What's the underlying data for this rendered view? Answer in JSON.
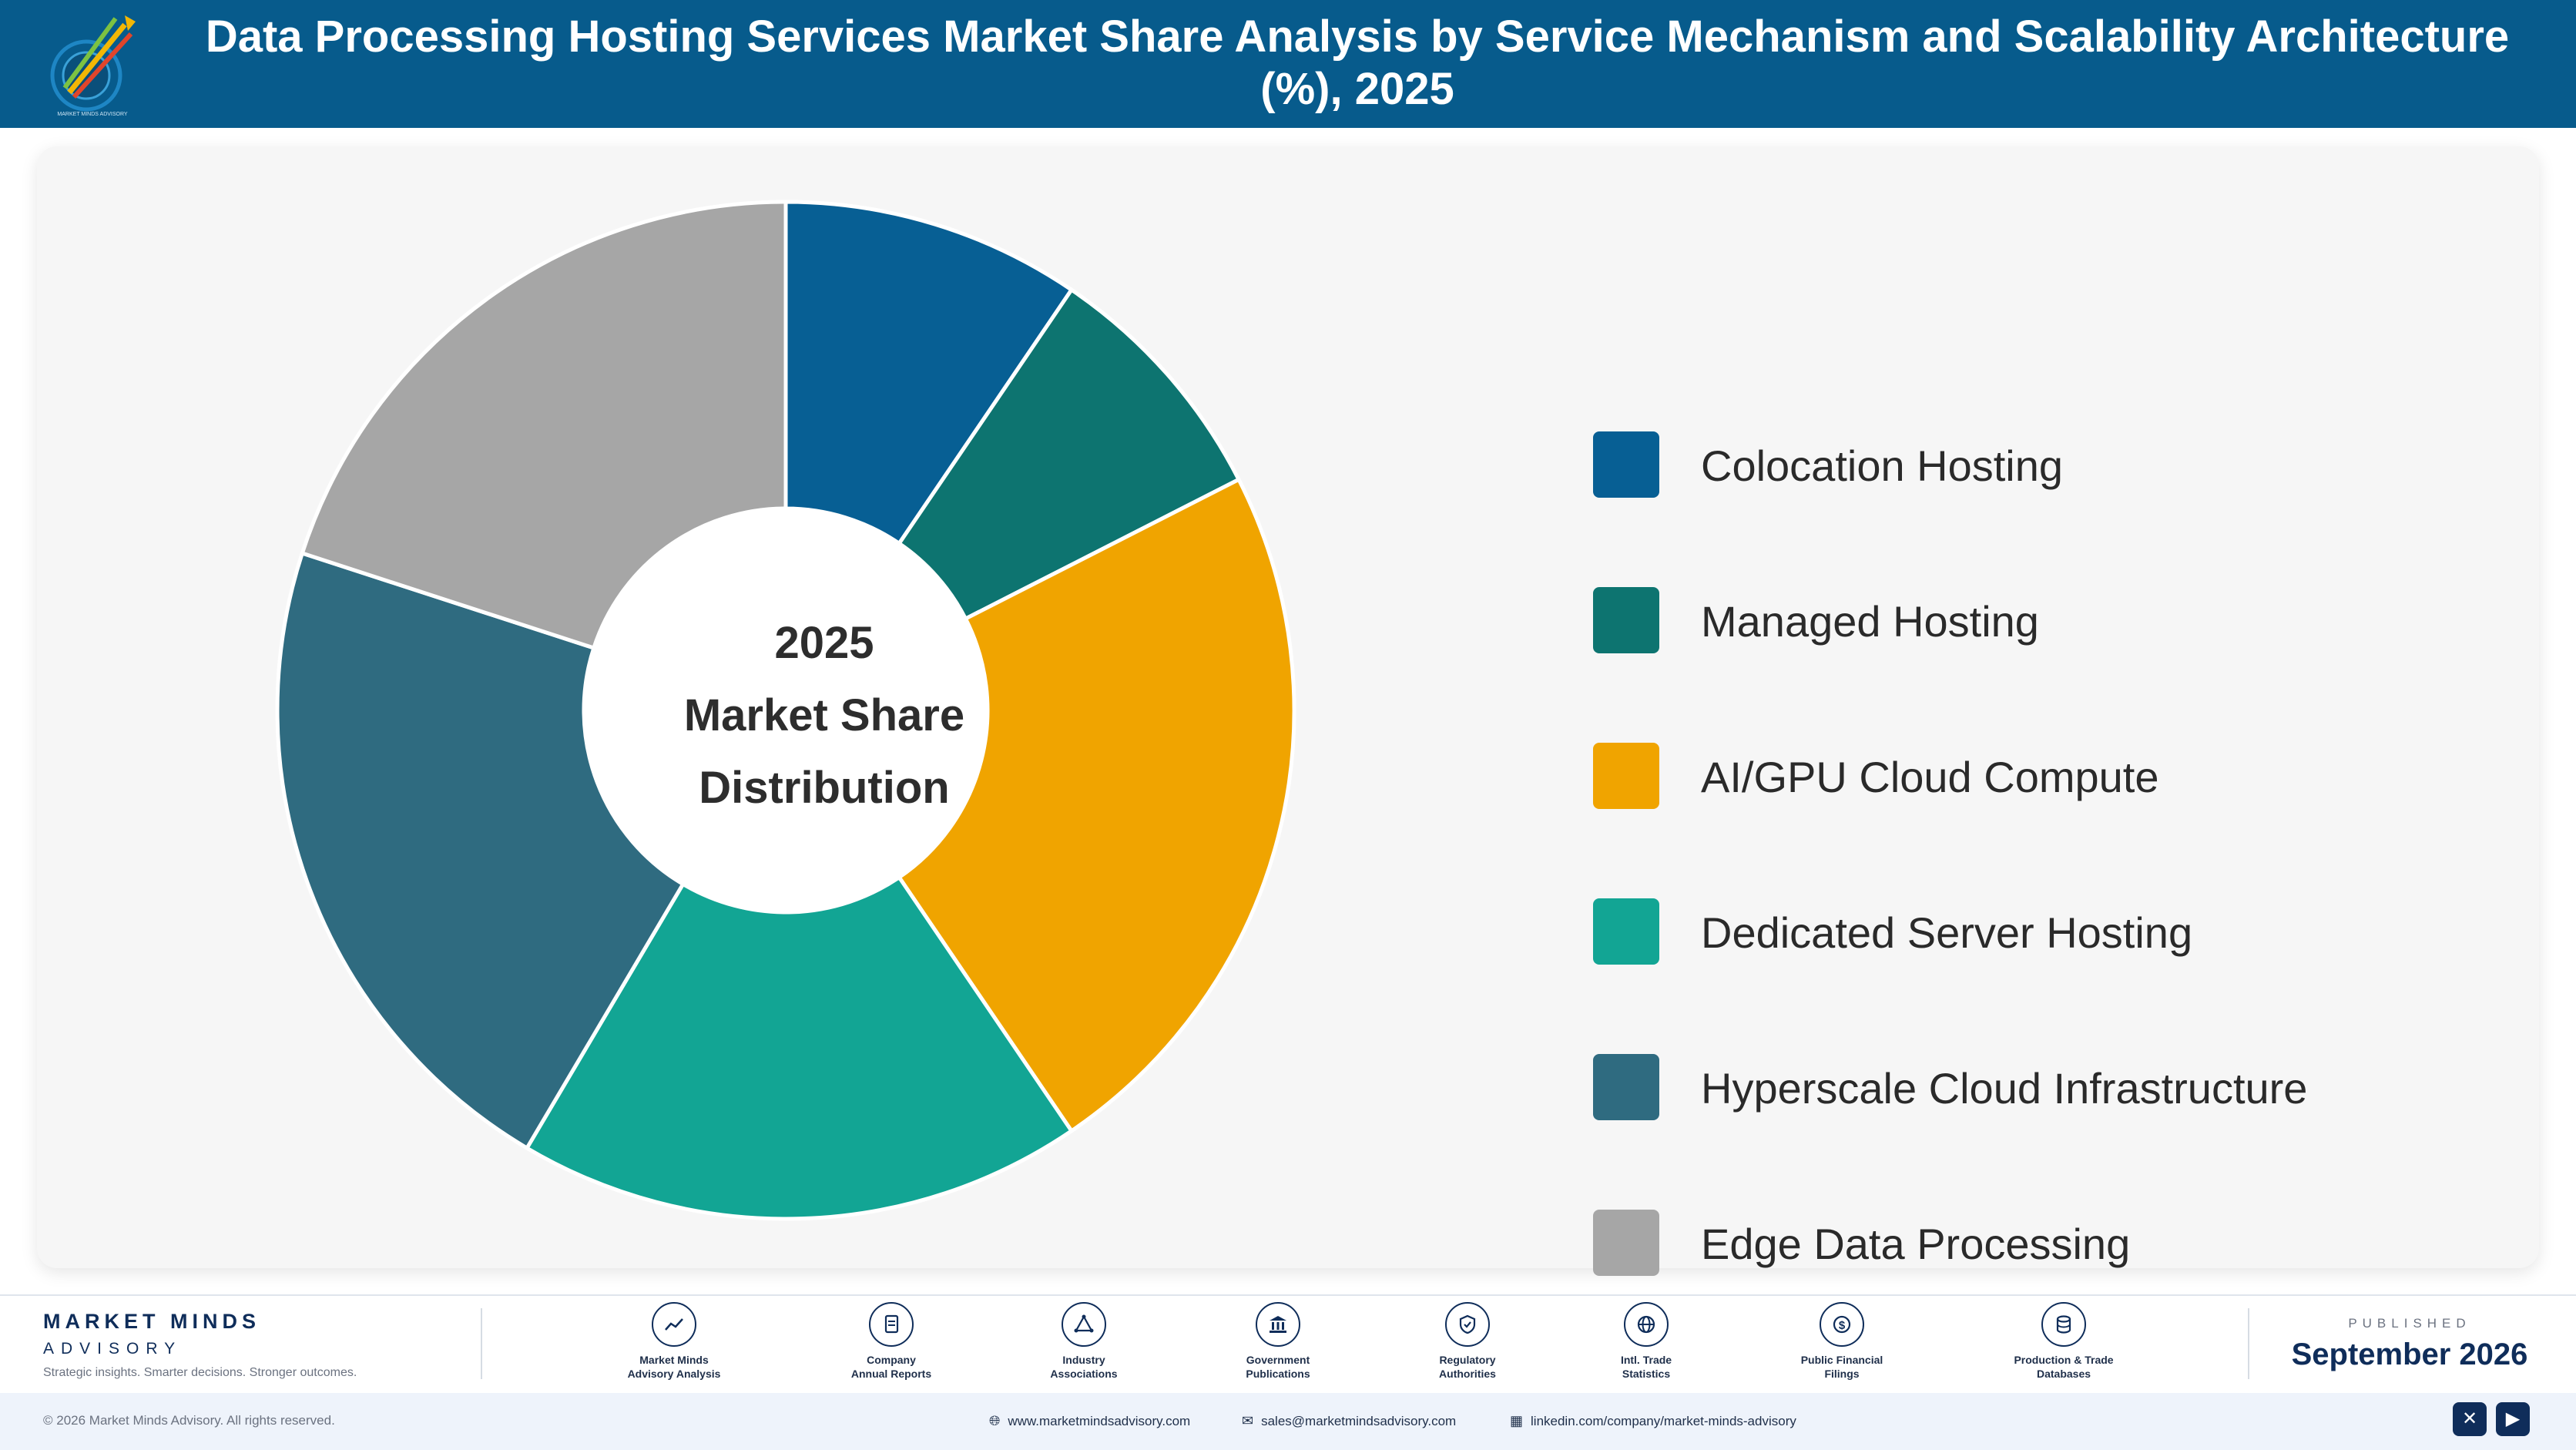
{
  "header": {
    "title_line1": "Data Processing Hosting Services Market Share Analysis by Service Mechanism and Scalability Architecture",
    "title_line2": "(%), 2025",
    "logo_icon": "market-minds-logo-icon"
  },
  "chart_data": {
    "type": "pie",
    "title": "Data Processing Hosting Services Market Share Analysis by Service Mechanism and Scalability Architecture (%), 2025",
    "center_label": [
      "2025",
      "Market Share",
      "Distribution"
    ],
    "categories": [
      "Colocation Hosting",
      "Managed Hosting",
      "AI/GPU Cloud Compute",
      "Dedicated Server Hosting",
      "Hyperscale Cloud Infrastructure",
      "Edge Data Processing"
    ],
    "values": [
      9.5,
      8,
      23,
      18,
      21.5,
      20
    ],
    "colors": [
      "#075f94",
      "#0d7470",
      "#f0a400",
      "#12a594",
      "#2f6b80",
      "#a6a6a6"
    ],
    "legend_position": "right"
  },
  "footer": {
    "brand_name": "MARKET MINDS",
    "brand_sub": "ADVISORY",
    "brand_tagline": "Strategic insights. Smarter decisions. Stronger outcomes.",
    "sources": [
      {
        "line1": "Market Minds",
        "line2": "Advisory Analysis",
        "icon": "trend-chart-icon"
      },
      {
        "line1": "Company",
        "line2": "Annual Reports",
        "icon": "document-icon"
      },
      {
        "line1": "Industry",
        "line2": "Associations",
        "icon": "network-icon"
      },
      {
        "line1": "Government",
        "line2": "Publications",
        "icon": "government-building-icon"
      },
      {
        "line1": "Regulatory",
        "line2": "Authorities",
        "icon": "shield-check-icon"
      },
      {
        "line1": "Intl. Trade",
        "line2": "Statistics",
        "icon": "globe-icon"
      },
      {
        "line1": "Public Financial",
        "line2": "Filings",
        "icon": "dollar-coin-icon"
      },
      {
        "line1": "Production & Trade",
        "line2": "Databases",
        "icon": "database-icon"
      }
    ],
    "published_label": "PUBLISHED",
    "published_date": "September 2026",
    "copyright": "© 2026 Market Minds Advisory. All rights reserved.",
    "website": "www.marketmindsadvisory.com",
    "email": "sales@marketmindsadvisory.com",
    "linkedin": "linkedin.com/company/market-minds-advisory"
  }
}
